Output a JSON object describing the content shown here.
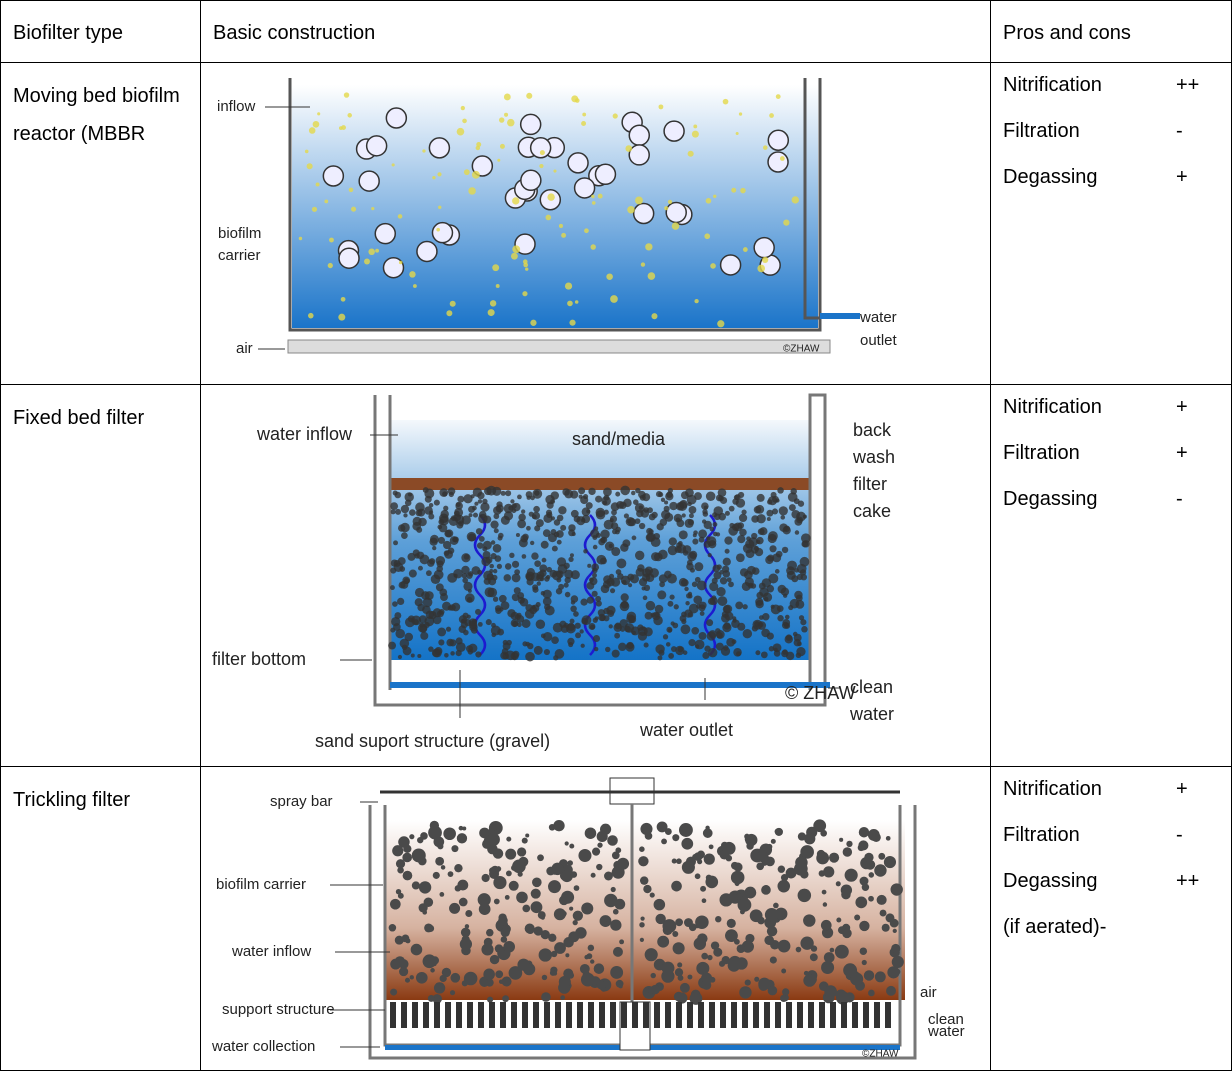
{
  "table": {
    "header": [
      "Biofilter type",
      "Basic construction",
      "Pros and cons"
    ],
    "rows": [
      {
        "type": "Moving bed biofilm reactor (MBBR",
        "diagram_labels": [
          "inflow",
          "biofilm",
          "carrier",
          "air",
          "water",
          "outlet",
          "©ZHAW"
        ],
        "pros_cons": [
          {
            "label": "Nitrification",
            "rating": "++"
          },
          {
            "label": "Filtration",
            "rating": "-"
          },
          {
            "label": "Degassing",
            "rating": "+"
          }
        ]
      },
      {
        "type": "Fixed bed filter",
        "diagram_labels": [
          "water inflow",
          "sand/media",
          "back",
          "wash",
          "filter",
          "cake",
          "filter bottom",
          "clean",
          "water",
          "sand suport structure (gravel)",
          "water outlet",
          "© ZHAW"
        ],
        "pros_cons": [
          {
            "label": "Nitrification",
            "rating": "+"
          },
          {
            "label": "Filtration",
            "rating": "+"
          },
          {
            "label": "Degassing",
            "rating": "-"
          }
        ]
      },
      {
        "type": "Trickling filter",
        "diagram_labels": [
          "spray bar",
          "biofilm carrier",
          "water inflow",
          "support structure",
          "water collection",
          "air",
          "clean",
          "water",
          "©ZHAW"
        ],
        "pros_cons": [
          {
            "label": "Nitrification",
            "rating": "+"
          },
          {
            "label": "Filtration",
            "rating": "-"
          },
          {
            "label": "Degassing",
            "note": "(if aerated)-",
            "rating": "++"
          }
        ]
      }
    ]
  }
}
